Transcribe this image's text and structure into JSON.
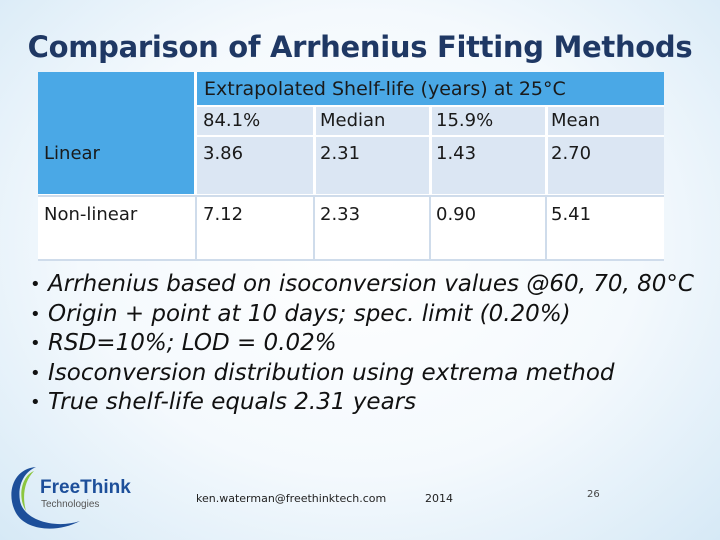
{
  "title": "Comparison of Arrhenius Fitting Methods",
  "table": {
    "header": "Extrapolated Shelf-life (years) at 25°C",
    "columns": [
      "84.1%",
      "Median",
      "15.9%",
      "Mean"
    ],
    "rows": [
      {
        "label": "Linear",
        "values": [
          "3.86",
          "2.31",
          "1.43",
          "2.70"
        ]
      },
      {
        "label": "Non-linear",
        "values": [
          "7.12",
          "2.33",
          "0.90",
          "5.41"
        ]
      }
    ]
  },
  "bullets": [
    "Arrhenius based on isoconversion values @60, 70, 80°C",
    "Origin + point at 10 days; spec. limit (0.20%)",
    "RSD=10%; LOD = 0.02%",
    "Isoconversion distribution using extrema method",
    "True shelf-life equals 2.31 years"
  ],
  "logo": {
    "brand": "FreeThink",
    "sub": "Technologies"
  },
  "footer": {
    "email": "ken.waterman@freethinktech.com",
    "year": "2014",
    "page": "26"
  },
  "colors": {
    "title": "#1f3864",
    "header_blue": "#4aa8e6",
    "pale_blue": "#dbe6f3",
    "logo_blue": "#1d4f9a",
    "logo_green": "#8cc63f"
  }
}
